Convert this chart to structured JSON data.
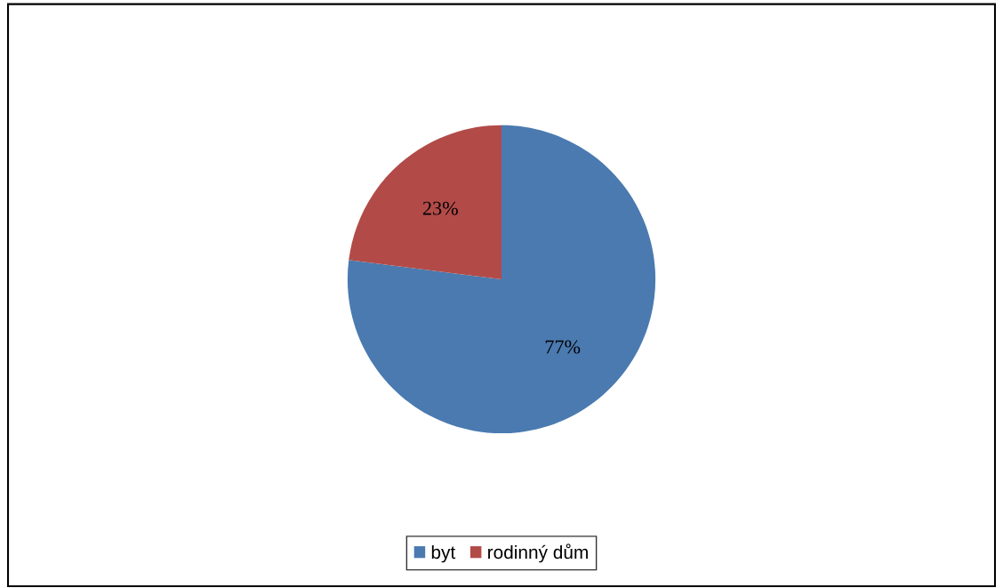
{
  "chart_data": {
    "type": "pie",
    "categories": [
      "byt",
      "rodinný dům"
    ],
    "values": [
      77,
      23
    ],
    "colors": [
      "#4a7ab0",
      "#b24b48"
    ],
    "value_labels": [
      "77%",
      "23%"
    ],
    "legend": "bottom"
  }
}
